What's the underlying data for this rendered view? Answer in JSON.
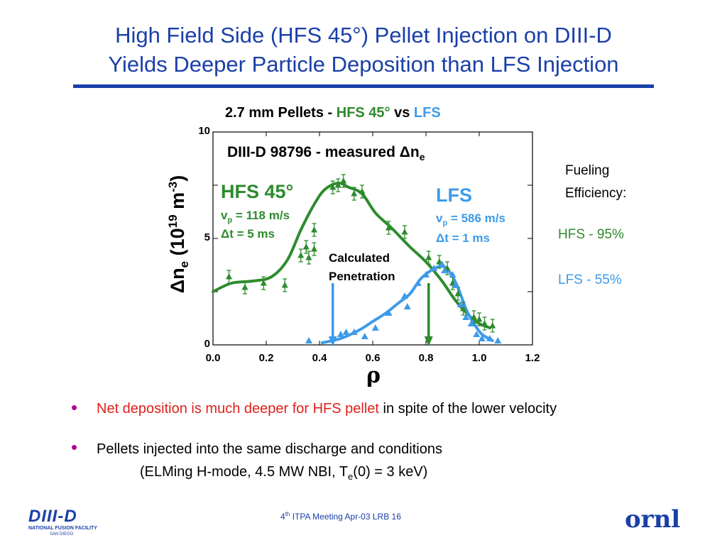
{
  "slide": {
    "title_line1": "High Field Side (HFS 45°) Pellet Injection on DIII-D",
    "title_line2": "Yields Deeper Particle Deposition than LFS Injection",
    "bullets": [
      {
        "part1": "Net deposition is much deeper for HFS pellet",
        "part2": " in spite of the lower velocity"
      },
      {
        "line1": "Pellets injected into the same discharge and conditions",
        "line2a": "(ELMing H-mode, 4.5 MW NBI, T",
        "line2sub": "e",
        "line2b": "(0) = 3 keV)"
      }
    ],
    "footer": {
      "sup": "th",
      "num": "4",
      "text": " ITPA Meeting  Apr-03   LRB     16"
    },
    "logo_left_text": "DIII-D",
    "logo_left_sub1": "NATIONAL FUSION FACILITY",
    "logo_left_sub2": "SAN DIEGO",
    "logo_right_text": "ornl"
  },
  "colors": {
    "title": "#1a3fa8",
    "hfs": "#2e8b2e",
    "lfs": "#3d9be9",
    "bullet_red": "#e0201b",
    "bullet_dot": "#b0008c"
  },
  "chart_data": {
    "type": "scatter",
    "title_parts": [
      "2.7 mm Pellets  -  ",
      "HFS 45°",
      " vs ",
      "LFS"
    ],
    "inner_title": "DIII-D 98796 - measured Δn",
    "inner_title_sub": "e",
    "xlabel": "ρ",
    "ylabel": "Δn",
    "ylabel_sub": "e",
    "ylabel_rest": " (10",
    "ylabel_sup": "19",
    "ylabel_unit": " m",
    "ylabel_unit_sup": "-3",
    "ylabel_close": ")",
    "xlim": [
      0.0,
      1.2
    ],
    "ylim": [
      0,
      10
    ],
    "x_ticks": [
      "0.0",
      "0.2",
      "0.4",
      "0.6",
      "0.8",
      "1.0",
      "1.2"
    ],
    "y_ticks": [
      "0",
      "5",
      "10"
    ],
    "series": [
      {
        "name": "HFS 45°",
        "marker": "triangle-up-errorbar",
        "points": [
          [
            0.06,
            3.2
          ],
          [
            0.12,
            2.7
          ],
          [
            0.19,
            2.9
          ],
          [
            0.27,
            2.8
          ],
          [
            0.33,
            4.2
          ],
          [
            0.35,
            4.6
          ],
          [
            0.36,
            4.1
          ],
          [
            0.38,
            4.5
          ],
          [
            0.38,
            5.4
          ],
          [
            0.45,
            7.4
          ],
          [
            0.47,
            7.5
          ],
          [
            0.49,
            7.7
          ],
          [
            0.53,
            7.1
          ],
          [
            0.56,
            7.2
          ],
          [
            0.66,
            5.5
          ],
          [
            0.72,
            5.3
          ],
          [
            0.81,
            4.1
          ],
          [
            0.85,
            3.9
          ],
          [
            0.88,
            3.6
          ],
          [
            0.9,
            2.9
          ],
          [
            0.92,
            2.4
          ],
          [
            0.94,
            1.7
          ],
          [
            0.98,
            1.3
          ],
          [
            1.0,
            1.2
          ],
          [
            1.02,
            1.0
          ],
          [
            1.05,
            0.9
          ]
        ],
        "fit": [
          [
            0.0,
            2.5
          ],
          [
            0.07,
            2.9
          ],
          [
            0.15,
            3.0
          ],
          [
            0.22,
            3.2
          ],
          [
            0.28,
            4.0
          ],
          [
            0.33,
            5.4
          ],
          [
            0.38,
            6.6
          ],
          [
            0.42,
            7.3
          ],
          [
            0.47,
            7.6
          ],
          [
            0.51,
            7.4
          ],
          [
            0.56,
            7.1
          ],
          [
            0.61,
            6.2
          ],
          [
            0.67,
            5.5
          ],
          [
            0.74,
            4.6
          ],
          [
            0.8,
            3.9
          ],
          [
            0.86,
            3.0
          ],
          [
            0.91,
            2.1
          ],
          [
            0.96,
            1.4
          ],
          [
            1.0,
            1.0
          ],
          [
            1.04,
            0.8
          ]
        ]
      },
      {
        "name": "LFS",
        "marker": "triangle-up",
        "points": [
          [
            0.36,
            0.2
          ],
          [
            0.48,
            0.5
          ],
          [
            0.5,
            0.6
          ],
          [
            0.53,
            0.6
          ],
          [
            0.57,
            0.4
          ],
          [
            0.61,
            0.8
          ],
          [
            0.66,
            1.5
          ],
          [
            0.72,
            2.3
          ],
          [
            0.73,
            1.8
          ],
          [
            0.77,
            2.9
          ],
          [
            0.8,
            3.3
          ],
          [
            0.83,
            3.6
          ],
          [
            0.86,
            3.8
          ],
          [
            0.87,
            3.5
          ],
          [
            0.9,
            3.3
          ],
          [
            0.91,
            2.8
          ],
          [
            0.93,
            1.9
          ],
          [
            0.95,
            1.3
          ],
          [
            0.97,
            1.0
          ],
          [
            0.99,
            0.5
          ],
          [
            1.01,
            0.3
          ],
          [
            1.04,
            0.3
          ],
          [
            1.07,
            0.2
          ]
        ],
        "fit": [
          [
            0.41,
            0.1
          ],
          [
            0.48,
            0.3
          ],
          [
            0.55,
            0.7
          ],
          [
            0.6,
            1.1
          ],
          [
            0.65,
            1.5
          ],
          [
            0.7,
            2.0
          ],
          [
            0.74,
            2.4
          ],
          [
            0.78,
            3.1
          ],
          [
            0.82,
            3.5
          ],
          [
            0.86,
            3.7
          ],
          [
            0.89,
            3.4
          ],
          [
            0.92,
            2.7
          ],
          [
            0.95,
            1.7
          ],
          [
            0.98,
            1.0
          ],
          [
            1.01,
            0.5
          ],
          [
            1.05,
            0.2
          ]
        ]
      }
    ],
    "arrows": [
      {
        "series": "LFS",
        "x": 0.45,
        "y_top": 2.9,
        "y_bottom": 0.0
      },
      {
        "series": "HFS 45°",
        "x": 0.81,
        "y_top": 2.9,
        "y_bottom": 0.0
      }
    ],
    "annotations": {
      "hfs_label": "HFS 45°",
      "hfs_vp": "v",
      "hfs_vp_sub": "p",
      "hfs_vp_val": " = 118 m/s",
      "hfs_dt": "Δt = 5 ms",
      "lfs_label": "LFS",
      "lfs_vp": "v",
      "lfs_vp_sub": "p",
      "lfs_vp_val": " = 586 m/s",
      "lfs_dt": "Δt = 1 ms",
      "calc_line1": "Calculated",
      "calc_line2": "Penetration",
      "fueling1": "Fueling",
      "fueling2": "Efficiency:",
      "hfs_eff": "HFS - 95%",
      "lfs_eff": "LFS - 55%"
    }
  }
}
